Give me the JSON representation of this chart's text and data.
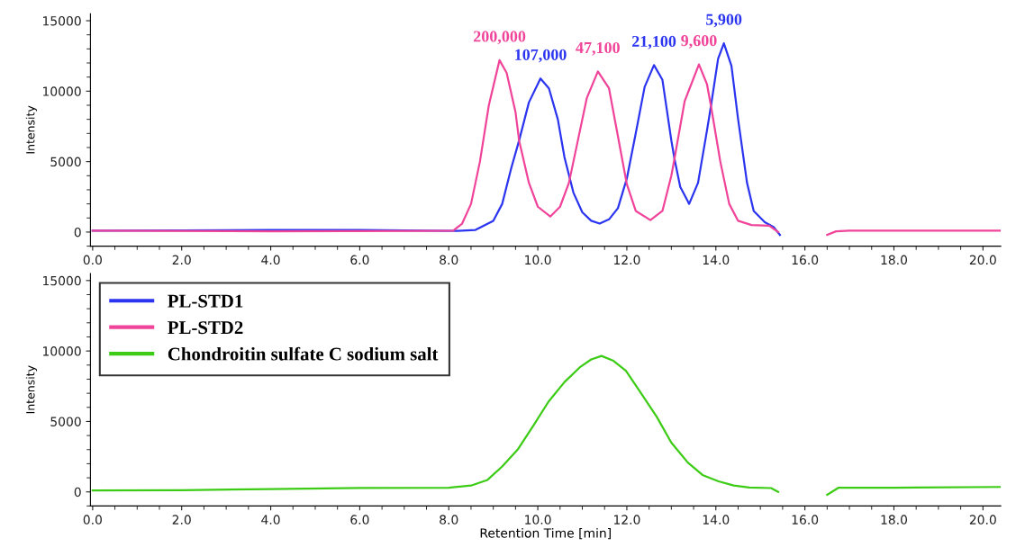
{
  "chart_data": [
    {
      "type": "line",
      "ylabel": "Intensity",
      "xlim": [
        -0.05,
        20.4
      ],
      "ylim": [
        -1000,
        15500
      ],
      "xticks": [
        {
          "value": 0,
          "label": "0.0"
        },
        {
          "value": 2,
          "label": "2.0"
        },
        {
          "value": 4,
          "label": "4.0"
        },
        {
          "value": 6,
          "label": "6.0"
        },
        {
          "value": 8,
          "label": "8.0"
        },
        {
          "value": 10,
          "label": "10.0"
        },
        {
          "value": 12,
          "label": "12.0"
        },
        {
          "value": 14,
          "label": "14.0"
        },
        {
          "value": 16,
          "label": "16.0"
        },
        {
          "value": 18,
          "label": "18.0"
        },
        {
          "value": 20,
          "label": "20.0"
        }
      ],
      "yticks": [
        0,
        5000,
        10000,
        15000
      ],
      "grid": false,
      "legend": "bottom left",
      "annotations": [
        {
          "text": "200,000",
          "x": 9.14,
          "y": 12200
        },
        {
          "text": "107,000",
          "x": 10.06,
          "y": 10900
        },
        {
          "text": "47,100",
          "x": 11.35,
          "y": 11400
        },
        {
          "text": "21,100",
          "x": 12.61,
          "y": 11850
        },
        {
          "text": "9,600",
          "x": 13.62,
          "y": 11900
        },
        {
          "text": "5,900",
          "x": 14.18,
          "y": 13400
        }
      ],
      "series": [
        {
          "name": "PL-STD1",
          "color": "#2b35f0",
          "x": [
            0,
            2,
            4,
            6,
            7.5,
            8.2,
            8.6,
            9.0,
            9.2,
            9.4,
            9.58,
            9.8,
            10.06,
            10.25,
            10.45,
            10.6,
            10.8,
            11.0,
            11.2,
            11.39,
            11.6,
            11.8,
            12.0,
            12.2,
            12.4,
            12.61,
            12.8,
            13.0,
            13.07,
            13.2,
            13.4,
            13.6,
            13.8,
            13.89,
            14.05,
            14.18,
            14.35,
            14.5,
            14.7,
            14.85,
            15.1,
            15.3,
            15.44
          ],
          "values": [
            100,
            120,
            150,
            150,
            100,
            80,
            150,
            800,
            2000,
            4500,
            6500,
            9200,
            10900,
            10200,
            8000,
            5300,
            2800,
            1400,
            800,
            600,
            900,
            1700,
            3800,
            7000,
            10300,
            11850,
            10800,
            6500,
            5200,
            3200,
            2000,
            3500,
            7200,
            8950,
            12300,
            13400,
            11800,
            8000,
            3500,
            1500,
            700,
            350,
            -200
          ]
        },
        {
          "name": "PL-STD2",
          "color": "#f0449a",
          "x": [
            0,
            4,
            7.5,
            8.1,
            8.3,
            8.5,
            8.7,
            8.9,
            9.14,
            9.3,
            9.5,
            9.58,
            9.8,
            10.0,
            10.28,
            10.5,
            10.7,
            10.9,
            11.1,
            11.35,
            11.6,
            11.8,
            12.0,
            12.2,
            12.53,
            12.8,
            13.0,
            13.07,
            13.3,
            13.62,
            13.8,
            13.89,
            14.1,
            14.3,
            14.5,
            14.8,
            15.2,
            15.4,
            15.5,
            16.0,
            16.4,
            16.5,
            16.7,
            17,
            18,
            20.4
          ],
          "values": [
            100,
            50,
            80,
            100,
            600,
            2000,
            5000,
            9000,
            12200,
            11300,
            8500,
            6500,
            3500,
            1800,
            1100,
            1800,
            3500,
            6500,
            9500,
            11400,
            10200,
            6800,
            3400,
            1500,
            850,
            1500,
            4000,
            5200,
            9300,
            11900,
            10500,
            8950,
            5000,
            2000,
            800,
            500,
            450,
            0,
            null,
            null,
            null,
            -200,
            50,
            100,
            100,
            100
          ]
        }
      ]
    },
    {
      "type": "line",
      "xlabel": "Retention Time [min]",
      "ylabel": "Intensity",
      "xlim": [
        -0.05,
        20.4
      ],
      "ylim": [
        -1000,
        15500
      ],
      "xticks": [
        {
          "value": 0,
          "label": "0.0"
        },
        {
          "value": 2,
          "label": "2.0"
        },
        {
          "value": 4,
          "label": "4.0"
        },
        {
          "value": 6,
          "label": "6.0"
        },
        {
          "value": 8,
          "label": "8.0"
        },
        {
          "value": 10,
          "label": "10.0"
        },
        {
          "value": 12,
          "label": "12.0"
        },
        {
          "value": 14,
          "label": "14.0"
        },
        {
          "value": 16,
          "label": "16.0"
        },
        {
          "value": 18,
          "label": "18.0"
        },
        {
          "value": 20,
          "label": "20.0"
        }
      ],
      "yticks": [
        0,
        5000,
        10000,
        15000
      ],
      "grid": false,
      "legend": "top left",
      "series": [
        {
          "name": "Chondroitin sulfate C sodium salt",
          "color": "#3ccc16",
          "x": [
            0,
            2,
            4,
            6,
            8,
            8.5,
            8.87,
            9.2,
            9.56,
            9.9,
            10.24,
            10.6,
            10.94,
            11.2,
            11.43,
            11.7,
            11.98,
            12.3,
            12.67,
            13.0,
            13.37,
            13.7,
            14.06,
            14.4,
            14.75,
            15.24,
            15.4,
            15.5,
            16.0,
            16.38,
            16.5,
            16.76,
            18,
            20.4
          ],
          "values": [
            100,
            120,
            200,
            280,
            300,
            450,
            850,
            1800,
            3050,
            4700,
            6400,
            7800,
            8830,
            9400,
            9650,
            9300,
            8600,
            7100,
            5340,
            3500,
            2080,
            1200,
            750,
            450,
            310,
            270,
            0,
            null,
            null,
            null,
            -200,
            300,
            300,
            350
          ]
        }
      ]
    }
  ]
}
